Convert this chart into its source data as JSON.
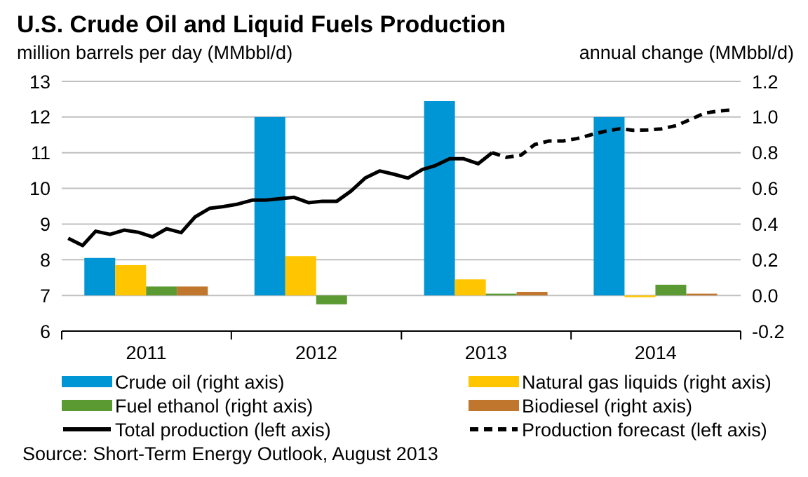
{
  "chart_data": {
    "type": "bar",
    "title": "U.S. Crude Oil and Liquid Fuels Production",
    "ylabel": "million barrels per day (MMbbl/d)",
    "y2label": "annual change (MMbbl/d)",
    "x": [
      "2011-07-02",
      "2012-07-02",
      "2013-07-02",
      "2014-07-02"
    ],
    "xlim": [
      "2011-01-01",
      "2015-01-01"
    ],
    "xticks": [
      {
        "value": "2011-01-01",
        "label": null
      },
      {
        "value": "2011-07-02",
        "label": "2011"
      },
      {
        "value": "2012-01-01",
        "label": null
      },
      {
        "value": "2012-07-02",
        "label": "2012"
      },
      {
        "value": "2013-01-01",
        "label": null
      },
      {
        "value": "2013-07-02",
        "label": "2013"
      },
      {
        "value": "2014-01-01",
        "label": null
      },
      {
        "value": "2014-07-02",
        "label": "2014"
      },
      {
        "value": "2015-01-01",
        "label": null
      }
    ],
    "ylim": [
      6,
      13
    ],
    "yticks": [
      6,
      7,
      8,
      9,
      10,
      11,
      12,
      13
    ],
    "y2lim": [
      -0.2,
      1.2
    ],
    "y2ticks": [
      -0.2,
      {
        "value": 0,
        "label": "0.0"
      },
      0.2,
      0.4,
      0.6,
      0.8,
      {
        "value": 1,
        "label": "1.0"
      },
      1.2
    ],
    "grid": "y",
    "legend": "bottom",
    "marker": "none",
    "series": [
      {
        "name": "Crude oil (right axis)",
        "axis": "y2",
        "color": "#0096d6",
        "values": [
          0.21,
          1.0,
          1.09,
          1.0
        ]
      },
      {
        "name": "Natural gas liquids (right axis)",
        "axis": "y2",
        "color": "#ffc600",
        "values": [
          0.17,
          0.22,
          0.09,
          -0.01
        ]
      },
      {
        "name": "Fuel ethanol (right axis)",
        "axis": "y2",
        "color": "#5b9a32",
        "values": [
          0.05,
          -0.05,
          0.01,
          0.06
        ]
      },
      {
        "name": "Biodiesel (right axis)",
        "axis": "y2",
        "color": "#c0762c",
        "values": [
          0.05,
          0.0,
          0.02,
          0.01
        ]
      },
      {
        "name": "Total production (left axis)",
        "type": "line",
        "color": "#000000",
        "line_style": "solid",
        "x": [
          "2011-01-15",
          "2011-02-15",
          "2011-03-15",
          "2011-04-15",
          "2011-05-15",
          "2011-06-15",
          "2011-07-15",
          "2011-08-15",
          "2011-09-15",
          "2011-10-15",
          "2011-11-15",
          "2011-12-15",
          "2012-01-15",
          "2012-02-15",
          "2012-03-15",
          "2012-04-15",
          "2012-05-15",
          "2012-06-15",
          "2012-07-15",
          "2012-08-15",
          "2012-09-15",
          "2012-10-15",
          "2012-11-15",
          "2012-12-15",
          "2013-01-15",
          "2013-02-15",
          "2013-03-15",
          "2013-04-15",
          "2013-05-15",
          "2013-06-15",
          "2013-07-15"
        ],
        "values": [
          8.6,
          8.4,
          8.8,
          8.71,
          8.83,
          8.77,
          8.64,
          8.87,
          8.76,
          9.2,
          9.44,
          9.49,
          9.56,
          9.67,
          9.67,
          9.71,
          9.75,
          9.6,
          9.64,
          9.64,
          9.93,
          10.29,
          10.49,
          10.4,
          10.29,
          10.53,
          10.64,
          10.83,
          10.83,
          10.69,
          11.0
        ]
      },
      {
        "name": "Production forecast (left axis)",
        "type": "line",
        "color": "#000000",
        "line_style": "dashed",
        "x": [
          "2013-07-15",
          "2013-08-15",
          "2013-09-15",
          "2013-10-15",
          "2013-11-15",
          "2013-12-15",
          "2014-01-15",
          "2014-02-15",
          "2014-03-15",
          "2014-04-15",
          "2014-05-15",
          "2014-06-15",
          "2014-07-15",
          "2014-08-15",
          "2014-09-15",
          "2014-10-15",
          "2014-11-15",
          "2014-12-15"
        ],
        "values": [
          11.0,
          10.87,
          10.93,
          11.23,
          11.33,
          11.33,
          11.4,
          11.51,
          11.6,
          11.67,
          11.63,
          11.64,
          11.67,
          11.76,
          11.93,
          12.11,
          12.17,
          12.2
        ]
      }
    ],
    "annotations": [
      "Source: Short-Term Energy Outlook, August 2013"
    ]
  }
}
